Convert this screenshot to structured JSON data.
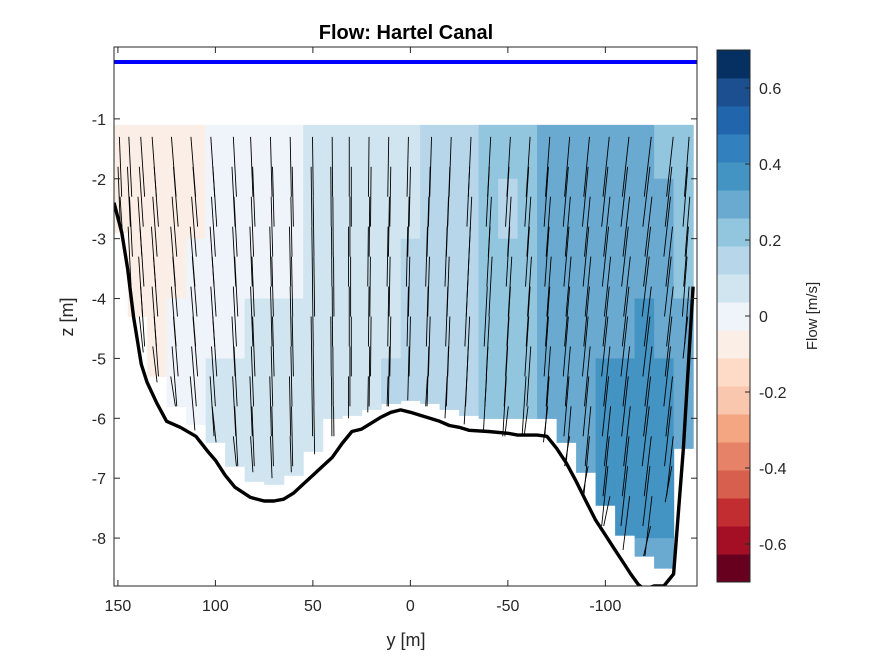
{
  "chart_data": {
    "type": "heatmap",
    "title": "Flow: Hartel Canal",
    "xlabel": "y [m]",
    "ylabel": "z [m]",
    "colorbar_label": "Flow [m/s]",
    "x_reversed": true,
    "xlim": [
      152,
      -147
    ],
    "ylim": [
      -8.8,
      0.2
    ],
    "x_ticks": [
      150,
      100,
      50,
      0,
      -50,
      -100
    ],
    "x_tick_labels": [
      "150",
      "100",
      "50",
      "0",
      "-50",
      "-100"
    ],
    "y_ticks": [
      -1,
      -2,
      -3,
      -4,
      -5,
      -6,
      -7,
      -8
    ],
    "y_tick_labels": [
      "-1",
      "-2",
      "-3",
      "-4",
      "-5",
      "-6",
      "-7",
      "-8"
    ],
    "colorbar_range": [
      -0.7,
      0.7
    ],
    "colorbar_ticks": [
      0.6,
      0.4,
      0.2,
      0,
      -0.2,
      -0.4,
      -0.6
    ],
    "colorbar_tick_labels": [
      "0.6",
      "0.4",
      "0.2",
      "0",
      "-0.2",
      "-0.4",
      "-0.6"
    ],
    "colormap": [
      "#67001f",
      "#a50f26",
      "#c22d32",
      "#d6604d",
      "#e58267",
      "#f4a582",
      "#f9c7ad",
      "#fddbc7",
      "#fbeee6",
      "#eef4f9",
      "#d1e5f0",
      "#b7d6ea",
      "#92c5de",
      "#6aa9d0",
      "#4393c3",
      "#3280bd",
      "#2166ac",
      "#1b4f8f",
      "#053061"
    ],
    "water_surface_z": -0.05,
    "water_surface_color": "#0000ff",
    "bed_profile": {
      "y": [
        152,
        148,
        145,
        142,
        138,
        135,
        130,
        125,
        118,
        110,
        104,
        100,
        95,
        90,
        82,
        75,
        70,
        65,
        60,
        55,
        50,
        45,
        40,
        35,
        30,
        25,
        20,
        15,
        10,
        5,
        0,
        -5,
        -10,
        -15,
        -20,
        -25,
        -30,
        -40,
        -50,
        -55,
        -60,
        -65,
        -70,
        -75,
        -80,
        -85,
        -90,
        -95,
        -100,
        -105,
        -110,
        -113,
        -117,
        -120,
        -125,
        -130,
        -135,
        -140,
        -145
      ],
      "z": [
        -2.4,
        -2.9,
        -3.5,
        -4.3,
        -5.1,
        -5.4,
        -5.75,
        -6.05,
        -6.15,
        -6.3,
        -6.55,
        -6.7,
        -6.95,
        -7.15,
        -7.32,
        -7.38,
        -7.38,
        -7.35,
        -7.25,
        -7.1,
        -6.95,
        -6.8,
        -6.65,
        -6.42,
        -6.22,
        -6.18,
        -6.08,
        -5.98,
        -5.9,
        -5.86,
        -5.9,
        -5.95,
        -6.0,
        -6.05,
        -6.12,
        -6.15,
        -6.2,
        -6.22,
        -6.25,
        -6.28,
        -6.28,
        -6.28,
        -6.3,
        -6.5,
        -6.75,
        -7.05,
        -7.38,
        -7.7,
        -7.95,
        -8.2,
        -8.45,
        -8.6,
        -8.78,
        -8.85,
        -8.8,
        -8.8,
        -8.6,
        -6.5,
        -3.8
      ]
    },
    "flow_field": {
      "y": [
        150,
        140,
        130,
        120,
        110,
        100,
        90,
        80,
        70,
        60,
        50,
        40,
        30,
        20,
        10,
        0,
        -10,
        -20,
        -30,
        -40,
        -50,
        -60,
        -70,
        -80,
        -90,
        -100,
        -110,
        -120,
        -130,
        -140
      ],
      "top_z": -1.1,
      "bottom_z": [
        -2.9,
        -4.3,
        -5.3,
        -5.8,
        -6.1,
        -6.4,
        -6.8,
        -7.05,
        -7.1,
        -6.95,
        -6.55,
        -6.2,
        -5.95,
        -5.85,
        -5.75,
        -5.7,
        -5.75,
        -5.85,
        -5.95,
        -6.0,
        -6.05,
        -6.05,
        -6.1,
        -6.4,
        -6.9,
        -7.45,
        -7.95,
        -8.3,
        -8.5,
        -6.5
      ],
      "z_levels": [
        -1.5,
        -2.5,
        -3.5,
        -4.5,
        -5.5,
        -6.5,
        -7.5,
        -8.5
      ],
      "values": [
        [
          -0.08,
          -0.08,
          null,
          null,
          null,
          null,
          null,
          null
        ],
        [
          -0.06,
          -0.07,
          -0.06,
          -0.05,
          null,
          null,
          null,
          null
        ],
        [
          -0.05,
          -0.05,
          -0.05,
          -0.04,
          -0.04,
          null,
          null,
          null
        ],
        [
          -0.06,
          -0.05,
          -0.04,
          -0.03,
          -0.02,
          null,
          null,
          null
        ],
        [
          -0.05,
          -0.04,
          -0.03,
          -0.02,
          0.02,
          -0.01,
          null,
          null
        ],
        [
          -0.03,
          -0.03,
          -0.02,
          0.02,
          0.04,
          0.05,
          null,
          null
        ],
        [
          -0.03,
          -0.02,
          -0.01,
          0.03,
          0.05,
          0.05,
          null,
          null
        ],
        [
          -0.03,
          -0.02,
          0.02,
          0.04,
          0.05,
          0.05,
          0.05,
          null
        ],
        [
          -0.02,
          -0.01,
          0.02,
          0.04,
          0.05,
          0.05,
          0.05,
          null
        ],
        [
          -0.02,
          -0.01,
          0.02,
          0.04,
          0.05,
          0.06,
          null,
          null
        ],
        [
          0.05,
          0.05,
          0.05,
          0.06,
          0.07,
          0.07,
          null,
          null
        ],
        [
          0.06,
          0.06,
          0.07,
          0.07,
          0.08,
          null,
          null,
          null
        ],
        [
          0.06,
          0.07,
          0.09,
          0.09,
          0.09,
          null,
          null,
          null
        ],
        [
          0.07,
          0.08,
          0.1,
          0.1,
          0.11,
          null,
          null,
          null
        ],
        [
          0.08,
          0.09,
          0.11,
          0.11,
          0.12,
          null,
          null,
          null
        ],
        [
          0.08,
          0.1,
          0.12,
          0.12,
          0.13,
          null,
          null,
          null
        ],
        [
          0.12,
          0.12,
          0.14,
          0.14,
          0.15,
          null,
          null,
          null
        ],
        [
          0.14,
          0.14,
          0.15,
          0.16,
          0.17,
          null,
          null,
          null
        ],
        [
          0.16,
          0.18,
          0.18,
          0.18,
          0.18,
          null,
          null,
          null
        ],
        [
          0.22,
          0.2,
          0.2,
          0.2,
          0.2,
          null,
          null,
          null
        ],
        [
          0.24,
          0.16,
          0.22,
          0.22,
          0.22,
          null,
          null,
          null
        ],
        [
          0.22,
          0.24,
          0.24,
          0.24,
          0.24,
          null,
          null,
          null
        ],
        [
          0.26,
          0.26,
          0.27,
          0.26,
          0.26,
          null,
          null,
          null
        ],
        [
          0.26,
          0.26,
          0.27,
          0.27,
          0.28,
          0.28,
          null,
          null
        ],
        [
          0.27,
          0.27,
          0.28,
          0.3,
          0.3,
          0.32,
          null,
          null
        ],
        [
          0.28,
          0.28,
          0.3,
          0.32,
          0.34,
          0.36,
          0.36,
          null
        ],
        [
          0.27,
          0.28,
          0.3,
          0.32,
          0.35,
          0.37,
          0.37,
          null
        ],
        [
          0.26,
          0.28,
          0.3,
          0.34,
          0.36,
          0.38,
          0.36,
          0.3
        ],
        [
          0.25,
          0.27,
          0.28,
          0.32,
          0.34,
          0.36,
          0.34,
          0.28
        ],
        [
          0.2,
          0.22,
          0.24,
          0.26,
          0.26,
          0.26,
          null,
          null
        ]
      ]
    },
    "vectors": {
      "color": "#000000",
      "columns": [
        {
          "y": 149,
          "bottom_z": -2.9,
          "dy": 1.2
        },
        {
          "y": 144,
          "bottom_z": -3.9,
          "dy": 1.5
        },
        {
          "y": 138,
          "bottom_z": -4.9,
          "dy": 2.0
        },
        {
          "y": 131,
          "bottom_z": -5.4,
          "dy": 2.2
        },
        {
          "y": 121,
          "bottom_z": -5.8,
          "dy": 2.4
        },
        {
          "y": 111,
          "bottom_z": -6.2,
          "dy": 2.4
        },
        {
          "y": 101,
          "bottom_z": -6.4,
          "dy": 2.0
        },
        {
          "y": 90,
          "bottom_z": -6.8,
          "dy": 1.6
        },
        {
          "y": 81,
          "bottom_z": -6.9,
          "dy": 1.2
        },
        {
          "y": 71,
          "bottom_z": -7.0,
          "dy": 0.8
        },
        {
          "y": 61,
          "bottom_z": -6.9,
          "dy": 0.6
        },
        {
          "y": 50,
          "bottom_z": -6.6,
          "dy": 0.4
        },
        {
          "y": 40,
          "bottom_z": -6.3,
          "dy": 0.2
        },
        {
          "y": 31,
          "bottom_z": -6.0,
          "dy": 0.0
        },
        {
          "y": 21,
          "bottom_z": -5.9,
          "dy": -0.3
        },
        {
          "y": 11,
          "bottom_z": -5.8,
          "dy": -0.5
        },
        {
          "y": 1,
          "bottom_z": -5.7,
          "dy": -0.7
        },
        {
          "y": -9,
          "bottom_z": -5.8,
          "dy": -0.9
        },
        {
          "y": -19,
          "bottom_z": -6.0,
          "dy": -1.1
        },
        {
          "y": -29,
          "bottom_z": -6.1,
          "dy": -1.4
        },
        {
          "y": -39,
          "bottom_z": -6.2,
          "dy": -1.6
        },
        {
          "y": -49,
          "bottom_z": -6.3,
          "dy": -1.8
        },
        {
          "y": -59,
          "bottom_z": -6.3,
          "dy": -2.0
        },
        {
          "y": -69,
          "bottom_z": -6.4,
          "dy": -2.2
        },
        {
          "y": -79,
          "bottom_z": -6.8,
          "dy": -2.6
        },
        {
          "y": -89,
          "bottom_z": -7.3,
          "dy": -2.9
        },
        {
          "y": -99,
          "bottom_z": -7.8,
          "dy": -3.2
        },
        {
          "y": -109,
          "bottom_z": -8.2,
          "dy": -3.4
        },
        {
          "y": -120,
          "bottom_z": -8.3,
          "dy": -3.6
        },
        {
          "y": -131,
          "bottom_z": -7.4,
          "dy": -3.4
        },
        {
          "y": -140,
          "bottom_z": -5.0,
          "dy": -2.4
        }
      ],
      "z_levels": [
        -1.3,
        -1.8,
        -2.3,
        -2.8,
        -3.3,
        -3.8,
        -4.3,
        -4.8,
        -5.3,
        -5.8,
        -6.3,
        -6.8,
        -7.3,
        -7.8,
        -8.3
      ],
      "segment_length_z": 1.0
    }
  }
}
